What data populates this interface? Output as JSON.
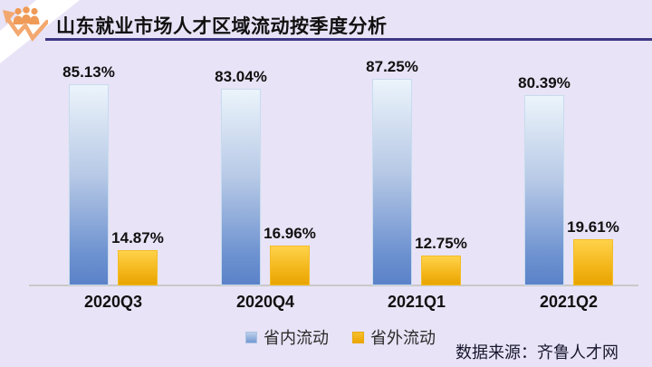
{
  "header": {
    "title": "山东就业市场人才区域流动按季度分析"
  },
  "chart_data": {
    "type": "bar",
    "title": "山东就业市场人才区域流动按季度分析",
    "categories": [
      "2020Q3",
      "2020Q4",
      "2021Q1",
      "2021Q2"
    ],
    "series": [
      {
        "name": "省内流动",
        "values": [
          85.13,
          83.04,
          87.25,
          80.39
        ]
      },
      {
        "name": "省外流动",
        "values": [
          14.87,
          16.96,
          12.75,
          19.61
        ]
      }
    ],
    "value_suffix": "%",
    "xlabel": "",
    "ylabel": "",
    "ylim": [
      0,
      100
    ],
    "grid": false,
    "legend_position": "bottom"
  },
  "footer": {
    "source": "数据来源：齐鲁人才网"
  },
  "colors": {
    "panel_background": "#e8e3f6",
    "title_underline": "#3d3884",
    "bar_blue_top": "#ecf4fb",
    "bar_blue_bottom": "#5b82c8",
    "bar_yellow_top": "#ffd24a",
    "bar_yellow_bottom": "#e9a400",
    "axis_line": "#c9c9c9",
    "icon_orange": "#f09a57"
  }
}
